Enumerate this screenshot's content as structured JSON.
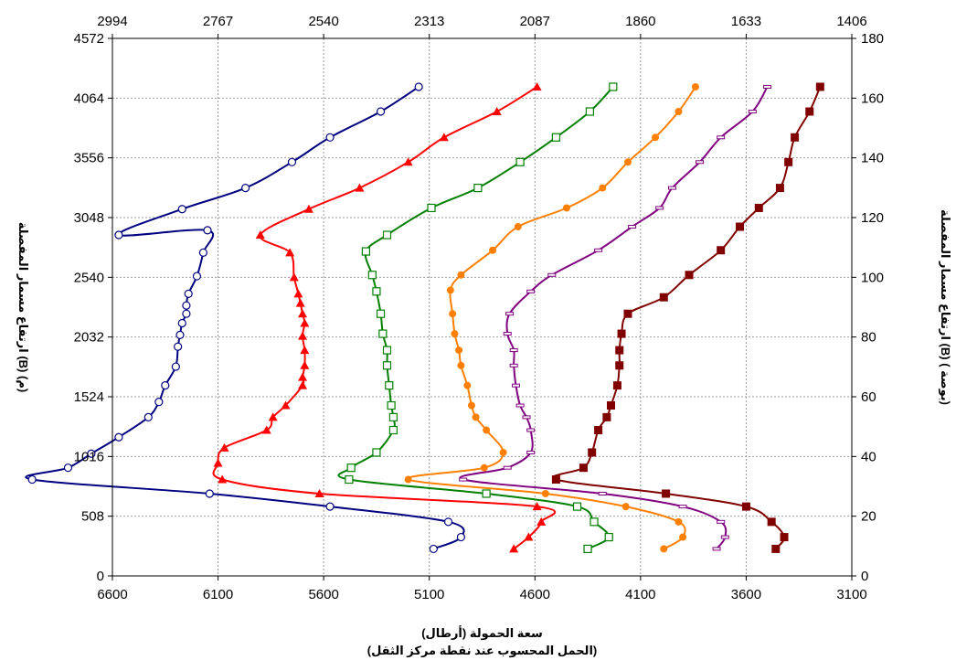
{
  "chart_data": {
    "type": "line",
    "xlabel": "سعة الحمولة (أرطال)",
    "xlabel_sub": "(الحمل المحسوب عند نقطة مركز الثقل)",
    "ylabel_left": "ارتفاع مسمار المفصلة (B) (م)",
    "ylabel_right": "ارتفاع مسمار المفصلة (B) ( بوصة)",
    "xlim": [
      6600,
      3100
    ],
    "x_ticks": [
      "6600",
      "6100",
      "5600",
      "5100",
      "4600",
      "4100",
      "3600",
      "3100"
    ],
    "top_ticks": [
      "2994",
      "2767",
      "2540",
      "2313",
      "2087",
      "1860",
      "1633",
      "1406"
    ],
    "ylim": [
      0,
      4572
    ],
    "y_left_ticks": [
      "0",
      "508",
      "1016",
      "1524",
      "2032",
      "2540",
      "3048",
      "3556",
      "4064",
      "4572"
    ],
    "y_right_ticks": [
      "0",
      "20",
      "40",
      "60",
      "80",
      "100",
      "120",
      "140",
      "160",
      "180"
    ],
    "grid": true,
    "series": [
      {
        "color": "#000080",
        "marker": "open-circle",
        "points": [
          [
            5150,
            4160
          ],
          [
            5330,
            3950
          ],
          [
            5570,
            3730
          ],
          [
            5750,
            3520
          ],
          [
            5970,
            3300
          ],
          [
            6270,
            3120
          ],
          [
            6570,
            2900
          ],
          [
            6150,
            2940
          ],
          [
            6170,
            2750
          ],
          [
            6200,
            2550
          ],
          [
            6240,
            2400
          ],
          [
            6250,
            2300
          ],
          [
            6250,
            2230
          ],
          [
            6270,
            2150
          ],
          [
            6280,
            2050
          ],
          [
            6290,
            1950
          ],
          [
            6300,
            1780
          ],
          [
            6350,
            1620
          ],
          [
            6380,
            1480
          ],
          [
            6430,
            1350
          ],
          [
            6570,
            1180
          ],
          [
            6700,
            1040
          ],
          [
            6810,
            920
          ],
          [
            6980,
            820
          ],
          [
            6140,
            700
          ],
          [
            5570,
            590
          ],
          [
            5010,
            460
          ],
          [
            4950,
            330
          ],
          [
            5080,
            230
          ]
        ]
      },
      {
        "color": "#ff0000",
        "marker": "filled-triangle",
        "points": [
          [
            4590,
            4160
          ],
          [
            4780,
            3950
          ],
          [
            5030,
            3730
          ],
          [
            5200,
            3520
          ],
          [
            5430,
            3300
          ],
          [
            5670,
            3120
          ],
          [
            5900,
            2900
          ],
          [
            5760,
            2750
          ],
          [
            5740,
            2540
          ],
          [
            5720,
            2400
          ],
          [
            5710,
            2320
          ],
          [
            5700,
            2230
          ],
          [
            5690,
            2150
          ],
          [
            5700,
            2040
          ],
          [
            5690,
            1920
          ],
          [
            5690,
            1790
          ],
          [
            5700,
            1690
          ],
          [
            5700,
            1620
          ],
          [
            5780,
            1450
          ],
          [
            5840,
            1350
          ],
          [
            5870,
            1240
          ],
          [
            6070,
            1090
          ],
          [
            6100,
            960
          ],
          [
            6080,
            820
          ],
          [
            5620,
            700
          ],
          [
            4590,
            590
          ],
          [
            4570,
            460
          ],
          [
            4630,
            330
          ],
          [
            4700,
            230
          ]
        ]
      },
      {
        "color": "#008000",
        "marker": "open-square",
        "points": [
          [
            4230,
            4160
          ],
          [
            4340,
            3950
          ],
          [
            4500,
            3730
          ],
          [
            4670,
            3520
          ],
          [
            4870,
            3300
          ],
          [
            5090,
            3130
          ],
          [
            5300,
            2900
          ],
          [
            5400,
            2760
          ],
          [
            5370,
            2560
          ],
          [
            5350,
            2420
          ],
          [
            5330,
            2230
          ],
          [
            5320,
            2060
          ],
          [
            5300,
            1920
          ],
          [
            5300,
            1790
          ],
          [
            5290,
            1620
          ],
          [
            5280,
            1450
          ],
          [
            5270,
            1350
          ],
          [
            5270,
            1240
          ],
          [
            5350,
            1050
          ],
          [
            5470,
            920
          ],
          [
            5480,
            820
          ],
          [
            4830,
            700
          ],
          [
            4400,
            590
          ],
          [
            4320,
            460
          ],
          [
            4250,
            330
          ],
          [
            4350,
            230
          ]
        ]
      },
      {
        "color": "#ff8000",
        "marker": "filled-circle",
        "points": [
          [
            3840,
            4160
          ],
          [
            3920,
            3950
          ],
          [
            4030,
            3730
          ],
          [
            4160,
            3520
          ],
          [
            4280,
            3300
          ],
          [
            4450,
            3130
          ],
          [
            4680,
            2970
          ],
          [
            4800,
            2770
          ],
          [
            4950,
            2560
          ],
          [
            5000,
            2430
          ],
          [
            4990,
            2230
          ],
          [
            4980,
            2060
          ],
          [
            4960,
            1920
          ],
          [
            4950,
            1790
          ],
          [
            4920,
            1620
          ],
          [
            4900,
            1450
          ],
          [
            4880,
            1350
          ],
          [
            4830,
            1240
          ],
          [
            4750,
            1050
          ],
          [
            4840,
            920
          ],
          [
            5200,
            820
          ],
          [
            4550,
            700
          ],
          [
            4170,
            590
          ],
          [
            3920,
            460
          ],
          [
            3900,
            330
          ],
          [
            3990,
            230
          ]
        ]
      },
      {
        "color": "#800080",
        "marker": "open-bar",
        "points": [
          [
            3500,
            4160
          ],
          [
            3570,
            3950
          ],
          [
            3720,
            3730
          ],
          [
            3820,
            3520
          ],
          [
            3950,
            3300
          ],
          [
            4010,
            3130
          ],
          [
            4140,
            2970
          ],
          [
            4300,
            2770
          ],
          [
            4520,
            2560
          ],
          [
            4620,
            2420
          ],
          [
            4720,
            2230
          ],
          [
            4730,
            2060
          ],
          [
            4700,
            1920
          ],
          [
            4700,
            1790
          ],
          [
            4690,
            1620
          ],
          [
            4670,
            1450
          ],
          [
            4640,
            1350
          ],
          [
            4620,
            1240
          ],
          [
            4620,
            1050
          ],
          [
            4730,
            920
          ],
          [
            4940,
            820
          ],
          [
            4280,
            700
          ],
          [
            3900,
            590
          ],
          [
            3720,
            460
          ],
          [
            3700,
            330
          ],
          [
            3740,
            230
          ]
        ]
      },
      {
        "color": "#800000",
        "marker": "filled-square",
        "points": [
          [
            3250,
            4160
          ],
          [
            3300,
            3950
          ],
          [
            3370,
            3730
          ],
          [
            3400,
            3520
          ],
          [
            3440,
            3300
          ],
          [
            3540,
            3130
          ],
          [
            3630,
            2970
          ],
          [
            3720,
            2770
          ],
          [
            3870,
            2560
          ],
          [
            3990,
            2370
          ],
          [
            4160,
            2230
          ],
          [
            4190,
            2060
          ],
          [
            4200,
            1920
          ],
          [
            4200,
            1790
          ],
          [
            4210,
            1620
          ],
          [
            4240,
            1450
          ],
          [
            4260,
            1350
          ],
          [
            4300,
            1240
          ],
          [
            4330,
            1050
          ],
          [
            4370,
            920
          ],
          [
            4500,
            820
          ],
          [
            3980,
            700
          ],
          [
            3600,
            590
          ],
          [
            3480,
            460
          ],
          [
            3420,
            330
          ],
          [
            3460,
            230
          ]
        ]
      }
    ]
  }
}
